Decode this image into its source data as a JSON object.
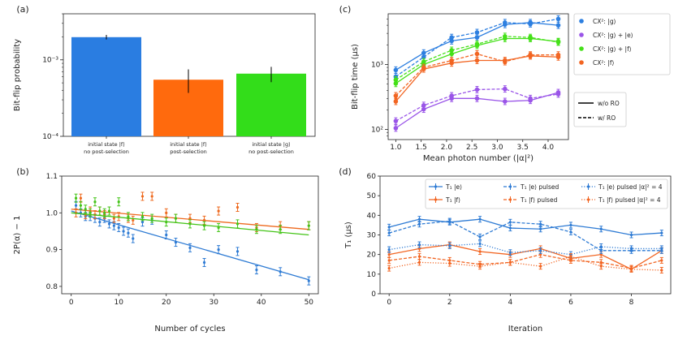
{
  "chart_data": [
    {
      "panel": "(a)",
      "type": "bar",
      "ylabel": "Bit-flip probability",
      "yscale": "log",
      "ylim": [
        0.0001,
        0.004
      ],
      "y_ticks": [
        {
          "v": 0.0001,
          "label": "10⁻⁴"
        },
        {
          "v": 0.001,
          "label": "10⁻³"
        }
      ],
      "categories": [
        {
          "line1": "initial state |f⟩",
          "line2": "no post-selection"
        },
        {
          "line1": "initial state |f⟩",
          "line2": "post-selection"
        },
        {
          "line1": "initial state |g⟩",
          "line2": "no post-selection"
        }
      ],
      "values": [
        0.00198,
        0.00055,
        0.00066
      ],
      "err_low": [
        0.00185,
        0.00037,
        0.00051
      ],
      "err_high": [
        0.00212,
        0.00075,
        0.00081
      ],
      "colors": [
        "#2a7de1",
        "#ff6a0d",
        "#33dd1a"
      ]
    },
    {
      "panel": "(b)",
      "type": "scatter",
      "xlabel": "Number of cycles",
      "ylabel": "2P(α) − 1",
      "xlim": [
        -2,
        52
      ],
      "ylim": [
        0.78,
        1.1
      ],
      "x_ticks": [
        0,
        10,
        20,
        30,
        40,
        50
      ],
      "y_ticks": [
        0.8,
        0.9,
        1.0,
        1.1
      ],
      "series": [
        {
          "name": "blue",
          "color": "#2e7bd4",
          "x": [
            1,
            2,
            3,
            4,
            5,
            6,
            7,
            8,
            9,
            10,
            11,
            12,
            13,
            15,
            17,
            20,
            22,
            25,
            28,
            31,
            35,
            39,
            44,
            50
          ],
          "y": [
            1.02,
            1.0,
            0.99,
            0.99,
            0.985,
            0.975,
            0.985,
            0.97,
            0.965,
            0.96,
            0.95,
            0.945,
            0.93,
            0.975,
            0.98,
            0.94,
            0.92,
            0.905,
            0.865,
            0.9,
            0.895,
            0.845,
            0.84,
            0.815
          ],
          "fit": [
            [
              0,
              1.005
            ],
            [
              50,
              0.818
            ]
          ]
        },
        {
          "name": "orange",
          "color": "#ee6a1f",
          "x": [
            1,
            2,
            3,
            4,
            5,
            6,
            7,
            9,
            10,
            12,
            13,
            15,
            17,
            20,
            22,
            25,
            28,
            31,
            35,
            39,
            44,
            50
          ],
          "y": [
            1.0,
            1.04,
            0.995,
            1.005,
            0.995,
            1.005,
            0.995,
            0.985,
            0.99,
            0.985,
            0.98,
            1.045,
            1.045,
            1.0,
            0.985,
            0.985,
            0.98,
            1.005,
            1.015,
            0.96,
            0.965,
            0.965
          ],
          "fit": [
            [
              0,
              1.01
            ],
            [
              50,
              0.955
            ]
          ]
        },
        {
          "name": "green",
          "color": "#44c418",
          "x": [
            1,
            2,
            3,
            4,
            5,
            6,
            7,
            8,
            10,
            12,
            15,
            17,
            20,
            22,
            25,
            28,
            31,
            35,
            39,
            44,
            50
          ],
          "y": [
            1.04,
            1.02,
            1.01,
            1.0,
            1.03,
            1.005,
            1.0,
            1.005,
            1.03,
            0.99,
            0.99,
            0.985,
            0.975,
            0.985,
            0.97,
            0.965,
            0.96,
            0.97,
            0.955,
            0.955,
            0.965
          ],
          "fit": [
            [
              0,
              1.0
            ],
            [
              50,
              0.94
            ]
          ]
        }
      ]
    },
    {
      "panel": "(c)",
      "type": "line",
      "xlabel": "Mean photon number (|α|²)",
      "ylabel": "Bit-flip time (μs)",
      "yscale": "log",
      "xlim": [
        0.85,
        4.4
      ],
      "ylim": [
        70,
        6000
      ],
      "x_ticks": [
        1.0,
        1.5,
        2.0,
        2.5,
        3.0,
        3.5,
        4.0
      ],
      "y_ticks": [
        {
          "v": 100,
          "label": "10²"
        },
        {
          "v": 1000,
          "label": "10³"
        }
      ],
      "x": [
        1.0,
        1.55,
        2.1,
        2.6,
        3.15,
        3.65,
        4.2
      ],
      "series": [
        {
          "name": "CX²: |g⟩",
          "color": "#2d7fe0",
          "wo_ro": [
            820,
            1500,
            2300,
            2600,
            4100,
            4400,
            4000
          ],
          "w_ro": [
            650,
            1300,
            2600,
            3100,
            4400,
            4200,
            5000
          ]
        },
        {
          "name": "CX²: |g⟩ + |e⟩",
          "color": "#9a55e8",
          "wo_ro": [
            105,
            205,
            300,
            300,
            270,
            280,
            370
          ],
          "w_ro": [
            135,
            235,
            330,
            410,
            420,
            300,
            350
          ]
        },
        {
          "name": "CX²: |g⟩ + |f⟩",
          "color": "#44e018",
          "wo_ro": [
            510,
            1000,
            1450,
            1950,
            2500,
            2500,
            2250
          ],
          "w_ro": [
            580,
            1100,
            1650,
            2050,
            2700,
            2600,
            2200
          ]
        },
        {
          "name": "CX²: |f⟩",
          "color": "#f26522",
          "wo_ro": [
            270,
            850,
            1050,
            1150,
            1150,
            1350,
            1300
          ],
          "w_ro": [
            330,
            900,
            1150,
            1450,
            1100,
            1400,
            1400
          ]
        }
      ],
      "style_legend": [
        "w/o RO",
        "w/ RO"
      ]
    },
    {
      "panel": "(d)",
      "type": "line",
      "xlabel": "Iteration",
      "ylabel": "T₁ (μs)",
      "xlim": [
        -0.3,
        9.3
      ],
      "ylim": [
        0,
        60
      ],
      "x_ticks": [
        0,
        2,
        4,
        6,
        8
      ],
      "y_ticks": [
        0,
        10,
        20,
        30,
        40,
        50,
        60
      ],
      "x": [
        0,
        1,
        2,
        3,
        4,
        5,
        6,
        7,
        8,
        9
      ],
      "series": [
        {
          "name": "T₁ |e⟩",
          "color": "#2e7bd4",
          "dash": "solid",
          "values": [
            34,
            38,
            36.5,
            38,
            33.5,
            33,
            35,
            33,
            30,
            31
          ]
        },
        {
          "name": "T₁ |f⟩",
          "color": "#f26522",
          "dash": "solid",
          "values": [
            20,
            23,
            25,
            21.5,
            20,
            23,
            18,
            20,
            12.5,
            22
          ]
        },
        {
          "name": "T₁ |e⟩ pulsed",
          "color": "#2e7bd4",
          "dash": "dashed",
          "values": [
            31,
            35.5,
            37,
            29,
            36.5,
            35.5,
            31.5,
            22,
            22,
            22
          ]
        },
        {
          "name": "T₁ |f⟩ pulsed",
          "color": "#f26522",
          "dash": "dashed",
          "values": [
            17,
            19,
            17,
            15,
            16,
            20,
            17,
            16,
            13,
            17
          ]
        },
        {
          "name": "T₁ |e⟩ pulsed |α|² = 4",
          "color": "#2e7bd4",
          "dash": "dotted",
          "values": [
            22.5,
            25,
            24.5,
            25.5,
            21,
            22,
            20,
            24,
            23,
            23
          ]
        },
        {
          "name": "T₁ |f⟩ pulsed |α|² = 4",
          "color": "#f26522",
          "dash": "dotted",
          "values": [
            13,
            16,
            15.5,
            14,
            16,
            14,
            19,
            14,
            12.5,
            12
          ]
        }
      ]
    }
  ]
}
